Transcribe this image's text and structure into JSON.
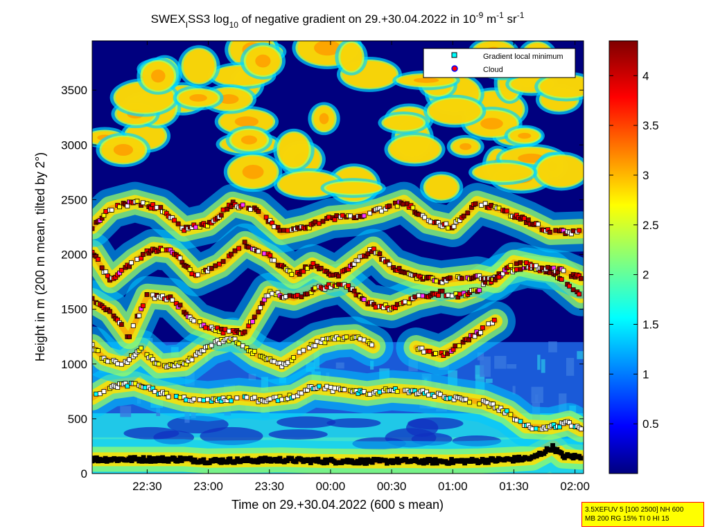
{
  "chart_data": {
    "type": "heatmap",
    "title": {
      "p1": "SWEX",
      "p1_sub": "I",
      "p2": "SS3 log",
      "p2_sub": "10",
      "p3": " of negative gradient on 29.+30.04.2022 in 10",
      "exp1": "-9",
      "p4": " m",
      "exp2": "-1",
      "p5": " sr",
      "exp3": "-1"
    },
    "xlabel": "Time on 29.+30.04.2022 (600 s mean)",
    "ylabel": "Height in m (200 m mean, tilted by 2°)",
    "x_ticks": [
      "22:30",
      "23:00",
      "23:30",
      "00:00",
      "00:30",
      "01:00",
      "01:30",
      "02:00"
    ],
    "x_tick_hours": [
      22.5,
      23.0,
      23.5,
      24.0,
      24.5,
      25.0,
      25.5,
      26.0
    ],
    "xlim_hours": [
      22.05,
      26.07
    ],
    "y_ticks": [
      "0",
      "500",
      "1000",
      "1500",
      "2000",
      "2500",
      "3000",
      "3500"
    ],
    "y_tick_values": [
      0,
      500,
      1000,
      1500,
      2000,
      2500,
      3000,
      3500
    ],
    "ylim": [
      0,
      3950
    ],
    "colorbar": {
      "ticks": [
        "0.5",
        "1",
        "1.5",
        "2",
        "2.5",
        "3",
        "3.5",
        "4"
      ],
      "tick_values": [
        0.5,
        1,
        1.5,
        2,
        2.5,
        3,
        3.5,
        4
      ],
      "range": [
        0,
        4.35
      ],
      "colormap": "jet"
    },
    "legend": {
      "position": "top-right",
      "entries": [
        {
          "label": "Gradient local minimum",
          "marker": "square",
          "color": "#00ffff"
        },
        {
          "label": "Cloud",
          "marker": "circle",
          "color": "#ff0000",
          "edge": "#0000ff"
        }
      ]
    },
    "marker_colors": [
      "#ffffff",
      "#ffff00",
      "#ff0000",
      "#8b0000",
      "#ff33ff",
      "#00ffff",
      "#000000"
    ],
    "layers": [
      {
        "name": "surface",
        "points": [
          [
            22.05,
            130
          ],
          [
            22.4,
            130
          ],
          [
            22.8,
            130
          ],
          [
            23.0,
            115
          ],
          [
            23.3,
            120
          ],
          [
            23.6,
            125
          ],
          [
            23.9,
            115
          ],
          [
            24.45,
            110
          ],
          [
            24.5,
            115
          ],
          [
            24.95,
            110
          ],
          [
            25.2,
            115
          ],
          [
            25.5,
            130
          ],
          [
            25.65,
            140
          ],
          [
            25.75,
            200
          ],
          [
            25.82,
            240
          ],
          [
            25.9,
            160
          ],
          [
            26.05,
            150
          ]
        ]
      },
      {
        "name": "boundary",
        "points": [
          [
            22.05,
            690
          ],
          [
            22.2,
            790
          ],
          [
            22.4,
            820
          ],
          [
            22.6,
            740
          ],
          [
            22.8,
            680
          ],
          [
            23.0,
            660
          ],
          [
            23.25,
            690
          ],
          [
            23.45,
            670
          ],
          [
            23.7,
            700
          ],
          [
            23.85,
            790
          ],
          [
            24.1,
            760
          ],
          [
            24.3,
            730
          ],
          [
            24.5,
            760
          ],
          [
            24.75,
            740
          ],
          [
            25.0,
            690
          ],
          [
            25.25,
            650
          ],
          [
            25.45,
            560
          ],
          [
            25.6,
            430
          ],
          [
            25.8,
            420
          ],
          [
            25.95,
            460
          ],
          [
            26.05,
            400
          ]
        ]
      },
      {
        "name": "lower",
        "points": [
          [
            22.05,
            1160
          ],
          [
            22.15,
            1050
          ],
          [
            22.3,
            1000
          ],
          [
            22.45,
            1130
          ],
          [
            22.6,
            980
          ],
          [
            22.8,
            1000
          ],
          [
            23.0,
            1170
          ],
          [
            23.2,
            1240
          ],
          [
            23.4,
            1080
          ],
          [
            23.6,
            990
          ],
          [
            23.9,
            1200
          ],
          [
            24.05,
            1240
          ],
          [
            24.2,
            1250
          ],
          [
            24.35,
            1160
          ]
        ]
      },
      {
        "name": "lower-2",
        "points": [
          [
            24.7,
            1150
          ],
          [
            24.9,
            1080
          ],
          [
            25.05,
            1170
          ],
          [
            25.25,
            1320
          ],
          [
            25.35,
            1390
          ]
        ]
      },
      {
        "name": "middle",
        "points": [
          [
            22.05,
            1580
          ],
          [
            22.2,
            1480
          ],
          [
            22.35,
            1250
          ],
          [
            22.5,
            1620
          ],
          [
            22.7,
            1600
          ],
          [
            22.9,
            1380
          ],
          [
            23.1,
            1300
          ],
          [
            23.3,
            1280
          ],
          [
            23.5,
            1650
          ],
          [
            23.7,
            1600
          ],
          [
            23.9,
            1690
          ],
          [
            24.1,
            1740
          ],
          [
            24.3,
            1550
          ],
          [
            24.5,
            1510
          ],
          [
            24.7,
            1600
          ],
          [
            24.9,
            1650
          ],
          [
            25.05,
            1620
          ],
          [
            25.2,
            1680
          ],
          [
            25.4,
            1820
          ],
          [
            25.6,
            1880
          ],
          [
            25.8,
            1850
          ],
          [
            26.05,
            1620
          ]
        ]
      },
      {
        "name": "upper",
        "points": [
          [
            22.05,
            2020
          ],
          [
            22.2,
            1760
          ],
          [
            22.4,
            1950
          ],
          [
            22.55,
            2050
          ],
          [
            22.7,
            2030
          ],
          [
            22.9,
            1800
          ],
          [
            23.1,
            1900
          ],
          [
            23.3,
            2100
          ],
          [
            23.5,
            1980
          ],
          [
            23.7,
            1800
          ],
          [
            23.85,
            1910
          ],
          [
            24.05,
            1800
          ],
          [
            24.2,
            1930
          ],
          [
            24.35,
            2050
          ],
          [
            24.5,
            1880
          ],
          [
            24.7,
            1800
          ],
          [
            24.9,
            1760
          ],
          [
            25.05,
            1780
          ],
          [
            25.2,
            1800
          ],
          [
            25.35,
            1760
          ],
          [
            25.5,
            1930
          ],
          [
            25.7,
            1880
          ],
          [
            25.9,
            1850
          ],
          [
            26.05,
            1780
          ]
        ]
      },
      {
        "name": "top",
        "points": [
          [
            22.05,
            2250
          ],
          [
            22.2,
            2420
          ],
          [
            22.4,
            2480
          ],
          [
            22.6,
            2420
          ],
          [
            22.8,
            2230
          ],
          [
            23.0,
            2280
          ],
          [
            23.2,
            2460
          ],
          [
            23.4,
            2400
          ],
          [
            23.6,
            2200
          ],
          [
            23.8,
            2250
          ],
          [
            24.0,
            2330
          ],
          [
            24.2,
            2350
          ],
          [
            24.4,
            2400
          ],
          [
            24.6,
            2480
          ],
          [
            24.8,
            2300
          ],
          [
            25.0,
            2250
          ],
          [
            25.2,
            2470
          ],
          [
            25.4,
            2400
          ],
          [
            25.6,
            2310
          ],
          [
            25.8,
            2200
          ],
          [
            26.05,
            2210
          ]
        ]
      }
    ]
  },
  "info_box": {
    "line1": "3.5XEFUV 5 [100 2500] NH 600",
    "line2": "MB 200 RG 15% TI 0 HI 15"
  }
}
